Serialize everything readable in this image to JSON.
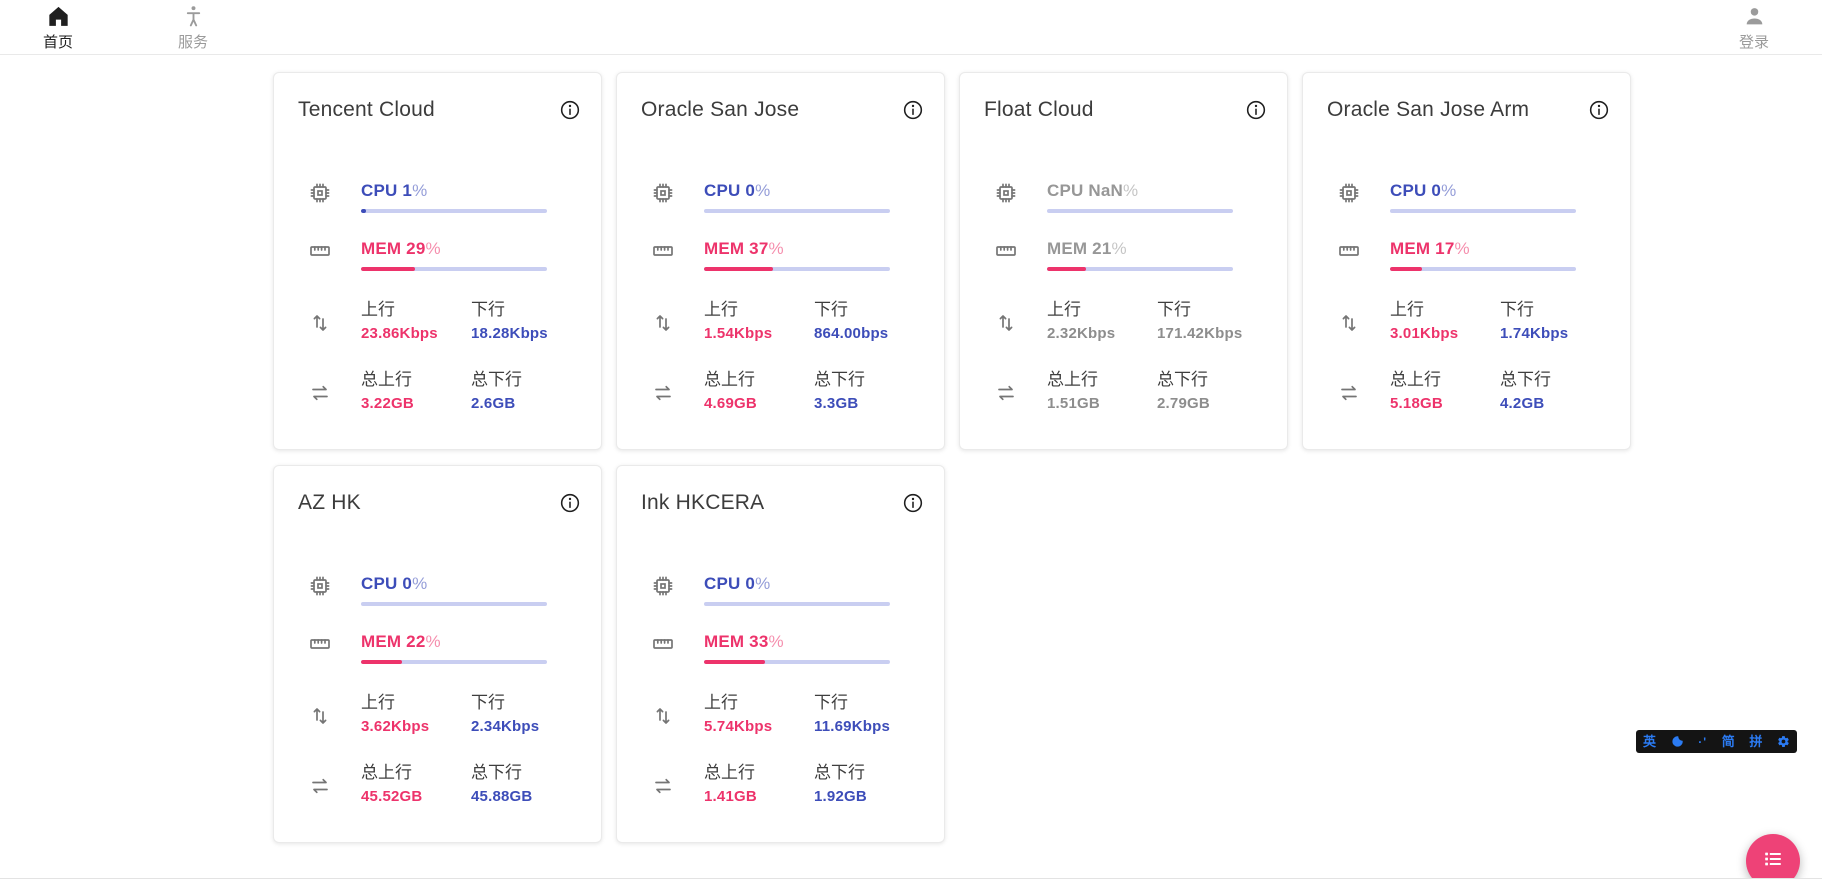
{
  "nav": {
    "home_label": "首页",
    "services_label": "服务",
    "login_label": "登录"
  },
  "labels": {
    "up": "上行",
    "down": "下行",
    "total_up": "总上行",
    "total_down": "总下行",
    "percent": "%"
  },
  "colors": {
    "accent_pink": "#ed336b",
    "accent_blue": "#3d4db9",
    "bar_track": "#c9cef1",
    "offline_gray": "#8d8d8d",
    "fab_pink": "#ee4277",
    "ime_blue": "#2b7bf3"
  },
  "servers": [
    {
      "name": "Tencent Cloud",
      "online": true,
      "cpu": {
        "text": "CPU 1",
        "pct": 1
      },
      "mem": {
        "text": "MEM 29",
        "pct": 29
      },
      "net": {
        "up": "23.86Kbps",
        "down": "18.28Kbps"
      },
      "total": {
        "up": "3.22GB",
        "down": "2.6GB"
      }
    },
    {
      "name": "Oracle San Jose",
      "online": true,
      "cpu": {
        "text": "CPU 0",
        "pct": 0
      },
      "mem": {
        "text": "MEM 37",
        "pct": 37
      },
      "net": {
        "up": "1.54Kbps",
        "down": "864.00bps"
      },
      "total": {
        "up": "4.69GB",
        "down": "3.3GB"
      }
    },
    {
      "name": "Float Cloud",
      "online": false,
      "cpu": {
        "text": "CPU NaN",
        "pct": 0
      },
      "mem": {
        "text": "MEM 21",
        "pct": 21
      },
      "net": {
        "up": "2.32Kbps",
        "down": "171.42Kbps"
      },
      "total": {
        "up": "1.51GB",
        "down": "2.79GB"
      }
    },
    {
      "name": "Oracle San Jose Arm",
      "online": true,
      "cpu": {
        "text": "CPU 0",
        "pct": 0
      },
      "mem": {
        "text": "MEM 17",
        "pct": 17
      },
      "net": {
        "up": "3.01Kbps",
        "down": "1.74Kbps"
      },
      "total": {
        "up": "5.18GB",
        "down": "4.2GB"
      }
    },
    {
      "name": "AZ HK",
      "online": true,
      "cpu": {
        "text": "CPU 0",
        "pct": 0
      },
      "mem": {
        "text": "MEM 22",
        "pct": 22
      },
      "net": {
        "up": "3.62Kbps",
        "down": "2.34Kbps"
      },
      "total": {
        "up": "45.52GB",
        "down": "45.88GB"
      }
    },
    {
      "name": "Ink HKCERA",
      "online": true,
      "cpu": {
        "text": "CPU 0",
        "pct": 0
      },
      "mem": {
        "text": "MEM 33",
        "pct": 33
      },
      "net": {
        "up": "5.74Kbps",
        "down": "11.69Kbps"
      },
      "total": {
        "up": "1.41GB",
        "down": "1.92GB"
      }
    }
  ],
  "ime": {
    "lang": "英",
    "punct": "·'",
    "simplified": "简",
    "pinyin": "拼"
  }
}
